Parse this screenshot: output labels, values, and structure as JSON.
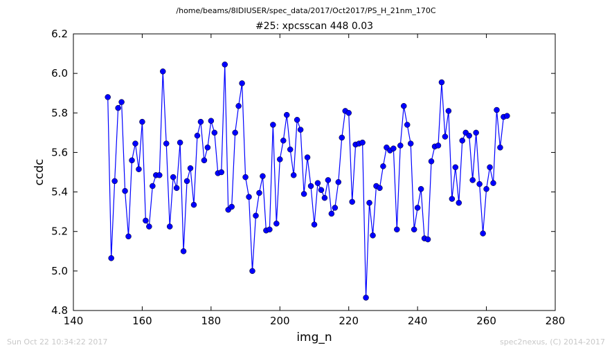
{
  "suptitle": "/home/beams/8IDIUSER/spec_data/2017/Oct2017/PS_H_21nm_170C",
  "footer_left": "Sun Oct 22 10:34:22 2017",
  "footer_right": "spec2nexus, (C) 2014-2017",
  "chart_data": {
    "type": "line",
    "title": "#25: xpcsscan 448 0.03",
    "xlabel": "img_n",
    "ylabel": "ccdc",
    "xlim": [
      140,
      280
    ],
    "ylim": [
      4.8,
      6.2
    ],
    "xticks": [
      140,
      160,
      180,
      200,
      220,
      240,
      260,
      280
    ],
    "yticks": [
      4.8,
      5.0,
      5.2,
      5.4,
      5.6,
      5.8,
      6.0,
      6.2
    ],
    "xtick_labels": [
      "140",
      "160",
      "180",
      "200",
      "220",
      "240",
      "260",
      "280"
    ],
    "ytick_labels": [
      "4.8",
      "5.0",
      "5.2",
      "5.4",
      "5.6",
      "5.8",
      "6.0",
      "6.2"
    ],
    "grid": false,
    "legend": false,
    "series_color": "#0000ff",
    "x": [
      150,
      151,
      152,
      153,
      154,
      155,
      156,
      157,
      158,
      159,
      160,
      161,
      162,
      163,
      164,
      165,
      166,
      167,
      168,
      169,
      170,
      171,
      172,
      173,
      174,
      175,
      176,
      177,
      178,
      179,
      180,
      181,
      182,
      183,
      184,
      185,
      186,
      187,
      188,
      189,
      190,
      191,
      192,
      193,
      194,
      195,
      196,
      197,
      198,
      199,
      200,
      201,
      202,
      203,
      204,
      205,
      206,
      207,
      208,
      209,
      210,
      211,
      212,
      213,
      214,
      215,
      216,
      217,
      218,
      219,
      220,
      221,
      222,
      223,
      224,
      225,
      226,
      227,
      228,
      229,
      230,
      231,
      232,
      233,
      234,
      235,
      236,
      237,
      238,
      239,
      240,
      241,
      242,
      243,
      244,
      245,
      246,
      247,
      248,
      249,
      250,
      251,
      252,
      253,
      254,
      255,
      256,
      257,
      258,
      259,
      260,
      261,
      262,
      263,
      264,
      265,
      266
    ],
    "y": [
      5.88,
      5.065,
      5.455,
      5.825,
      5.855,
      5.405,
      5.175,
      5.56,
      5.645,
      5.515,
      5.755,
      5.255,
      5.225,
      5.43,
      5.485,
      5.485,
      6.01,
      5.645,
      5.225,
      5.475,
      5.42,
      5.65,
      5.1,
      5.455,
      5.52,
      5.335,
      5.685,
      5.755,
      5.56,
      5.625,
      5.76,
      5.7,
      5.495,
      5.5,
      6.045,
      5.31,
      5.325,
      5.7,
      5.835,
      5.95,
      5.475,
      5.375,
      5.0,
      5.28,
      5.395,
      5.48,
      5.205,
      5.21,
      5.74,
      5.24,
      5.565,
      5.66,
      5.79,
      5.615,
      5.485,
      5.765,
      5.715,
      5.39,
      5.575,
      5.43,
      5.235,
      5.445,
      5.41,
      5.37,
      5.46,
      5.29,
      5.32,
      5.45,
      5.675,
      5.81,
      5.8,
      5.35,
      5.64,
      5.645,
      5.65,
      4.865,
      5.345,
      5.18,
      5.43,
      5.42,
      5.53,
      5.625,
      5.61,
      5.62,
      5.21,
      5.635,
      5.835,
      5.74,
      5.645,
      5.21,
      5.32,
      5.415,
      5.165,
      5.16,
      5.555,
      5.63,
      5.635,
      5.955,
      5.68,
      5.81,
      5.365,
      5.525,
      5.345,
      5.66,
      5.7,
      5.685,
      5.46,
      5.7,
      5.44,
      5.19,
      5.415,
      5.525,
      5.445,
      5.815,
      5.625,
      5.78,
      5.785
    ]
  }
}
